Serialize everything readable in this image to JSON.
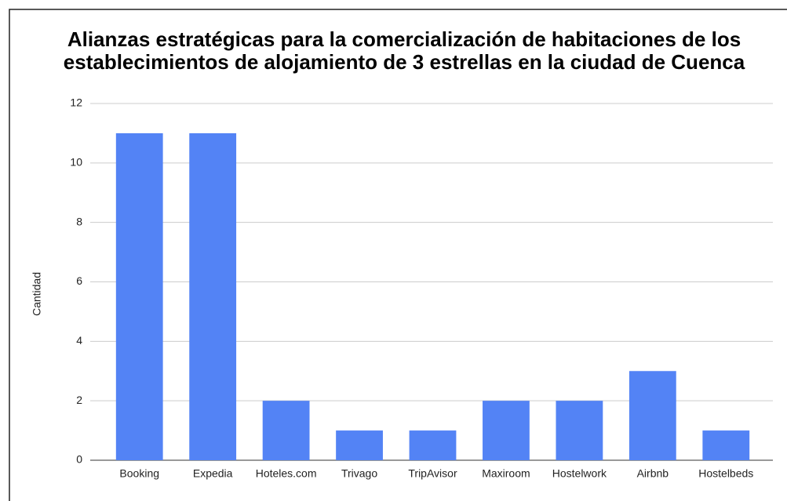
{
  "chart_data": {
    "type": "bar",
    "title": "Alianzas estratégicas para la comercialización de habitaciones de los establecimientos de alojamiento de 3 estrellas en la ciudad de Cuenca",
    "ylabel": "Cantidad",
    "categories": [
      "Booking",
      "Expedia",
      "Hoteles.com",
      "Trivago",
      "TripAvisor",
      "Maxiroom",
      "Hostelwork",
      "Airbnb",
      "Hostelbeds"
    ],
    "values": [
      11,
      11,
      2,
      1,
      1,
      2,
      2,
      3,
      1
    ],
    "color": "#5383f5",
    "ylim": [
      0,
      12
    ],
    "yticks": [
      0,
      2,
      4,
      6,
      8,
      10,
      12
    ],
    "grid": true
  }
}
